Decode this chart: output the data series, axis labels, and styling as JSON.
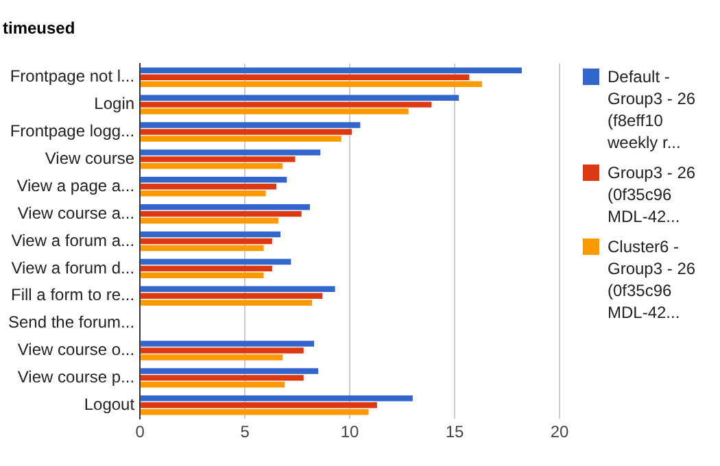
{
  "chart_data": {
    "type": "bar",
    "orientation": "horizontal",
    "title": "timeused",
    "categories": [
      "Frontpage not l...",
      "Login",
      "Frontpage logg...",
      "View course",
      "View a page a...",
      "View course a...",
      "View a forum a...",
      "View a forum d...",
      "Fill a form to re...",
      "Send the forum...",
      "View course o...",
      "View course p...",
      "Logout"
    ],
    "series": [
      {
        "name": "Default - Group3 - 26 (f8eff10 weekly r...",
        "color": "#3366cc",
        "values": [
          18.2,
          15.2,
          10.5,
          8.6,
          7.0,
          8.1,
          6.7,
          7.2,
          9.3,
          null,
          8.3,
          8.5,
          13.0
        ]
      },
      {
        "name": "Group3 - 26 (0f35c96 MDL-42...",
        "color": "#dc3912",
        "values": [
          15.7,
          13.9,
          10.1,
          7.4,
          6.5,
          7.7,
          6.3,
          6.3,
          8.7,
          null,
          7.8,
          7.8,
          11.3
        ]
      },
      {
        "name": "Cluster6 - Group3 - 26 (0f35c96 MDL-42...",
        "color": "#ff9900",
        "values": [
          16.3,
          12.8,
          9.6,
          6.8,
          6.0,
          6.6,
          5.9,
          5.9,
          8.2,
          null,
          6.8,
          6.9,
          10.9
        ]
      }
    ],
    "xlim": [
      0,
      20
    ],
    "xticks": [
      0,
      5,
      10,
      15,
      20
    ],
    "grid": "x",
    "legend": "right"
  }
}
